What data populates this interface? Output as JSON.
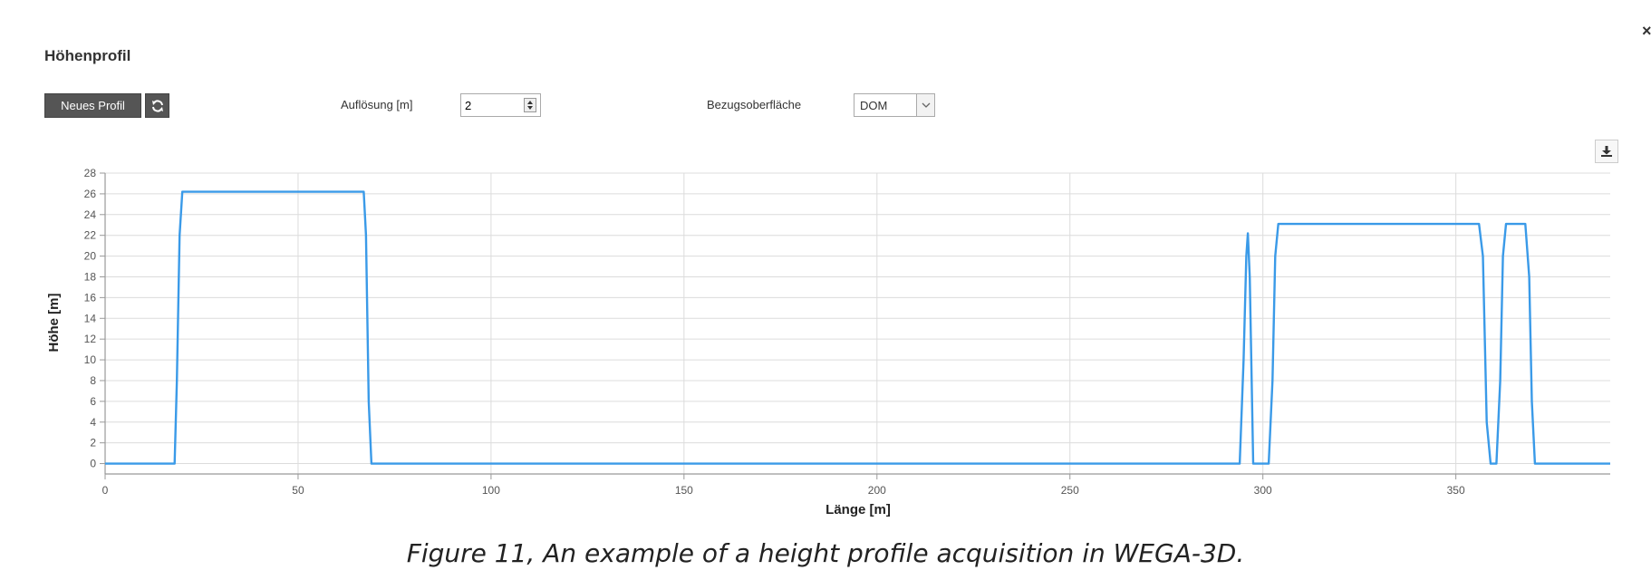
{
  "panel": {
    "title": "Höhenprofil",
    "close_glyph": "×"
  },
  "toolbar": {
    "new_profile_label": "Neues Profil",
    "refresh_icon": "refresh-icon",
    "resolution_label": "Auflösung [m]",
    "resolution_value": "2",
    "surface_label": "Bezugsoberfläche",
    "surface_value": "DOM",
    "download_icon": "download-icon"
  },
  "chart_data": {
    "type": "line",
    "xlabel": "Länge [m]",
    "ylabel": "Höhe [m]",
    "xlim": [
      0,
      390
    ],
    "ylim": [
      -1,
      28
    ],
    "x_ticks": [
      0,
      50,
      100,
      150,
      200,
      250,
      300,
      350
    ],
    "y_ticks": [
      0,
      2,
      4,
      6,
      8,
      10,
      12,
      14,
      16,
      18,
      20,
      22,
      24,
      26,
      28
    ],
    "grid": true,
    "line_color": "#3a9ae8",
    "series": [
      {
        "x": [
          0,
          18,
          18.6,
          19.3,
          20,
          67,
          67.6,
          68.3,
          69,
          294,
          295,
          295.7,
          296.1,
          296.6,
          297.5,
          301.5,
          302.5,
          303.2,
          304,
          356,
          357,
          358,
          359,
          360.5,
          361.5,
          362.2,
          363,
          368,
          369,
          369.7,
          370.5,
          390
        ],
        "y": [
          0,
          0,
          8,
          22,
          26.2,
          26.2,
          22,
          6,
          0,
          0,
          10,
          20,
          22.2,
          18,
          0,
          0,
          8,
          20,
          23.1,
          23.1,
          20,
          4,
          0,
          0,
          8,
          20,
          23.1,
          23.1,
          18,
          6,
          0,
          0
        ]
      }
    ]
  },
  "caption": "Figure 11, An example of a height profile acquisition in WEGA-3D."
}
